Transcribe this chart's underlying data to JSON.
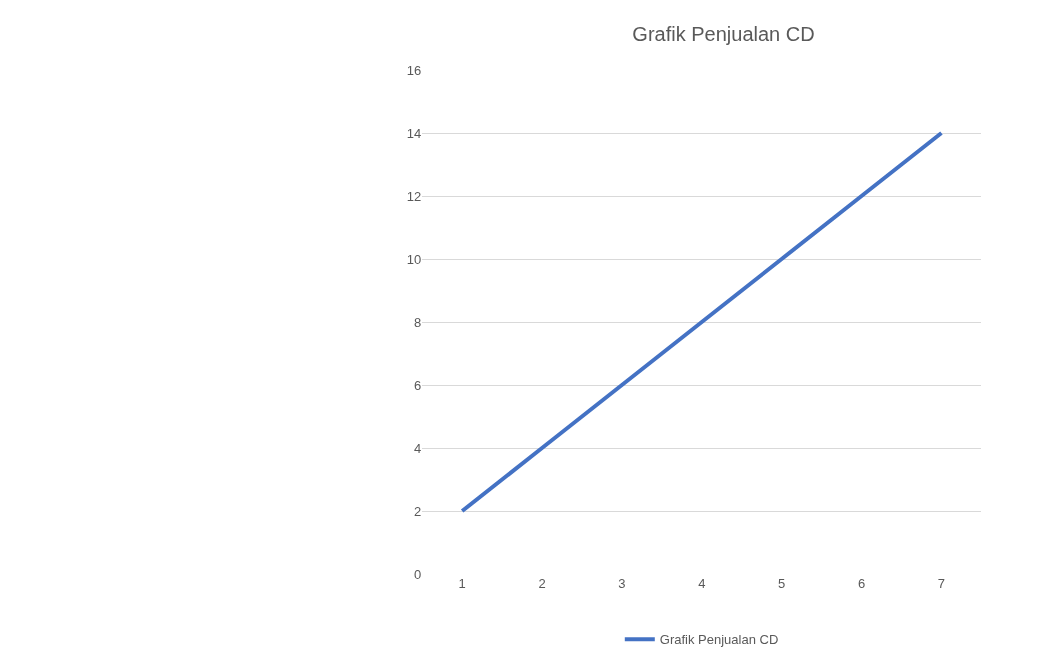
{
  "chart_data": {
    "type": "line",
    "title": "Grafik Penjualan CD",
    "categories": [
      "1",
      "2",
      "3",
      "4",
      "5",
      "6",
      "7"
    ],
    "series": [
      {
        "name": "Grafik Penjualan CD",
        "color": "#4472c4",
        "values": [
          2,
          4,
          6,
          8,
          10,
          12,
          14
        ]
      }
    ],
    "ylim": [
      0,
      16
    ],
    "yticks": [
      0,
      2,
      4,
      6,
      8,
      10,
      12,
      14,
      16
    ],
    "grid": "y",
    "legend": "bottom",
    "marker": "none",
    "line_style": "solid"
  }
}
